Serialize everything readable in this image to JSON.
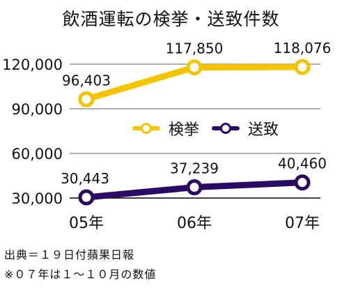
{
  "chart_data": {
    "type": "line",
    "title": "飲酒運転の検挙・送致件数",
    "categories": [
      "05年",
      "06年",
      "07年"
    ],
    "series": [
      {
        "name": "検挙",
        "values": [
          96403,
          117850,
          118076
        ],
        "color": "#f5c400"
      },
      {
        "name": "送致",
        "values": [
          30443,
          37239,
          40460
        ],
        "color": "#2b0a63"
      }
    ],
    "data_labels": {
      "検挙": [
        "96,403",
        "117,850",
        "118,076"
      ],
      "送致": [
        "30,443",
        "37,239",
        "40,460"
      ]
    },
    "y_ticks": [
      30000,
      60000,
      90000,
      120000
    ],
    "y_tick_labels": [
      "30,000",
      "60,000",
      "90,000",
      "120,000"
    ],
    "ylim": [
      30000,
      120000
    ],
    "grid": true,
    "legend_position": "center",
    "xlabel": "",
    "ylabel": ""
  },
  "notes": {
    "source": "出典＝１９日付蘋果日報",
    "caveat": "※０７年は１〜１０月の数値"
  },
  "style": {
    "gridline_color": "#b0b0b0",
    "axis_color": "#000000"
  }
}
